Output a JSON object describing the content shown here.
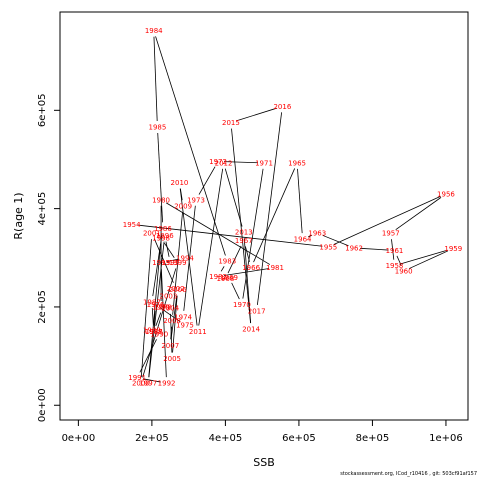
{
  "chart_data": {
    "type": "line",
    "title": "",
    "xlabel": "SSB",
    "ylabel": "R(age 1)",
    "xlim": [
      -50000,
      1060000
    ],
    "ylim": [
      -30000,
      800000
    ],
    "xticks": [
      0,
      200000,
      400000,
      600000,
      800000,
      1000000
    ],
    "xtick_labels": [
      "0e+00",
      "2e+05",
      "4e+05",
      "6e+05",
      "8e+05",
      "1e+06"
    ],
    "yticks": [
      0,
      200000,
      400000,
      600000
    ],
    "ytick_labels": [
      "0e+00",
      "2e+05",
      "4e+05",
      "6e+05"
    ],
    "grid": false,
    "line_color": "#000000",
    "label_color": "#ff0000",
    "points": [
      {
        "year": "1954",
        "x": 145000,
        "y": 368000
      },
      {
        "year": "1955",
        "x": 680000,
        "y": 322000
      },
      {
        "year": "1956",
        "x": 1000000,
        "y": 430000
      },
      {
        "year": "1957",
        "x": 850000,
        "y": 350000
      },
      {
        "year": "1958",
        "x": 860000,
        "y": 284000
      },
      {
        "year": "1959",
        "x": 1020000,
        "y": 319000
      },
      {
        "year": "1960",
        "x": 885000,
        "y": 273000
      },
      {
        "year": "1961",
        "x": 860000,
        "y": 315000
      },
      {
        "year": "1962",
        "x": 750000,
        "y": 320000
      },
      {
        "year": "1963",
        "x": 650000,
        "y": 350000
      },
      {
        "year": "1964",
        "x": 610000,
        "y": 338000
      },
      {
        "year": "1965",
        "x": 595000,
        "y": 493000
      },
      {
        "year": "1966",
        "x": 470000,
        "y": 280000
      },
      {
        "year": "1967",
        "x": 450000,
        "y": 335000
      },
      {
        "year": "1968",
        "x": 400000,
        "y": 258000
      },
      {
        "year": "1969",
        "x": 410000,
        "y": 260000
      },
      {
        "year": "1970",
        "x": 445000,
        "y": 205000
      },
      {
        "year": "1971",
        "x": 505000,
        "y": 493000
      },
      {
        "year": "1972",
        "x": 380000,
        "y": 496000
      },
      {
        "year": "1973",
        "x": 320000,
        "y": 418000
      },
      {
        "year": "1974",
        "x": 285000,
        "y": 180000
      },
      {
        "year": "1975",
        "x": 290000,
        "y": 163000
      },
      {
        "year": "1976",
        "x": 210000,
        "y": 205000
      },
      {
        "year": "1977",
        "x": 205000,
        "y": 150000
      },
      {
        "year": "1978",
        "x": 230000,
        "y": 200000
      },
      {
        "year": "1979",
        "x": 225000,
        "y": 200000
      },
      {
        "year": "1980",
        "x": 225000,
        "y": 418000
      },
      {
        "year": "1981",
        "x": 535000,
        "y": 280000
      },
      {
        "year": "1982",
        "x": 380000,
        "y": 262000
      },
      {
        "year": "1983",
        "x": 405000,
        "y": 293000
      },
      {
        "year": "1984",
        "x": 205000,
        "y": 762000
      },
      {
        "year": "1985",
        "x": 215000,
        "y": 566000
      },
      {
        "year": "1986",
        "x": 230000,
        "y": 360000
      },
      {
        "year": "1987",
        "x": 200000,
        "y": 210000
      },
      {
        "year": "1988",
        "x": 205000,
        "y": 150000
      },
      {
        "year": "1989",
        "x": 200000,
        "y": 153000
      },
      {
        "year": "1990",
        "x": 220000,
        "y": 145000
      },
      {
        "year": "1991",
        "x": 160000,
        "y": 56000
      },
      {
        "year": "1992",
        "x": 240000,
        "y": 45000
      },
      {
        "year": "1993",
        "x": 225000,
        "y": 290000
      },
      {
        "year": "1994",
        "x": 290000,
        "y": 300000
      },
      {
        "year": "1995",
        "x": 250000,
        "y": 290000
      },
      {
        "year": "1996",
        "x": 235000,
        "y": 345000
      },
      {
        "year": "1997",
        "x": 190000,
        "y": 45000
      },
      {
        "year": "1998",
        "x": 225000,
        "y": 340000
      },
      {
        "year": "1999",
        "x": 270000,
        "y": 290000
      },
      {
        "year": "2000",
        "x": 170000,
        "y": 45000
      },
      {
        "year": "2001",
        "x": 200000,
        "y": 350000
      },
      {
        "year": "2002",
        "x": 265000,
        "y": 238000
      },
      {
        "year": "2003",
        "x": 245000,
        "y": 222000
      },
      {
        "year": "2004",
        "x": 250000,
        "y": 198000
      },
      {
        "year": "2005",
        "x": 255000,
        "y": 95000
      },
      {
        "year": "2006",
        "x": 270000,
        "y": 235000
      },
      {
        "year": "2007",
        "x": 250000,
        "y": 122000
      },
      {
        "year": "2008",
        "x": 255000,
        "y": 172000
      },
      {
        "year": "2009",
        "x": 285000,
        "y": 405000
      },
      {
        "year": "2010",
        "x": 275000,
        "y": 453000
      },
      {
        "year": "2011",
        "x": 325000,
        "y": 150000
      },
      {
        "year": "2012",
        "x": 395000,
        "y": 493000
      },
      {
        "year": "2013",
        "x": 450000,
        "y": 352000
      },
      {
        "year": "2014",
        "x": 470000,
        "y": 155000
      },
      {
        "year": "2015",
        "x": 415000,
        "y": 575000
      },
      {
        "year": "2016",
        "x": 555000,
        "y": 608000
      },
      {
        "year": "2017",
        "x": 485000,
        "y": 192000
      }
    ]
  },
  "footer": {
    "text": "stockassessment.org, ICod_r10416 , git: 503cf91af157"
  }
}
